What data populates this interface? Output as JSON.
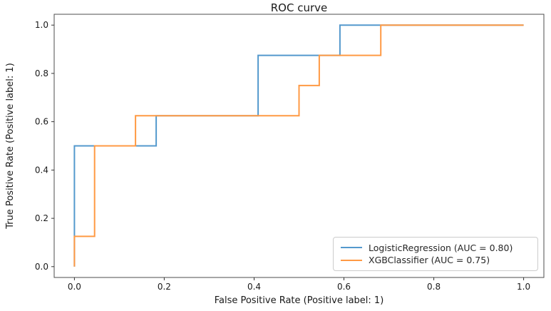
{
  "chart_data": {
    "type": "line",
    "subtype": "roc-step-curves",
    "title": "ROC curve",
    "xlabel": "False Positive Rate (Positive label: 1)",
    "ylabel": "True Positive Rate (Positive label: 1)",
    "xlim": [
      -0.045,
      1.045
    ],
    "ylim": [
      -0.045,
      1.045
    ],
    "xticks": [
      0.0,
      0.2,
      0.4,
      0.6,
      0.8,
      1.0
    ],
    "yticks": [
      0.0,
      0.2,
      0.4,
      0.6,
      0.8,
      1.0
    ],
    "xtick_labels": [
      "0.0",
      "0.2",
      "0.4",
      "0.6",
      "0.8",
      "1.0"
    ],
    "ytick_labels": [
      "0.0",
      "0.2",
      "0.4",
      "0.6",
      "0.8",
      "1.0"
    ],
    "grid": false,
    "legend_position": "lower right",
    "colors": {
      "axis": "#4d4d4d",
      "tick": "#333333",
      "text": "#1a1a1a",
      "legend_border": "#cccccc"
    },
    "series": [
      {
        "name": "LogisticRegression",
        "label": "LogisticRegression (AUC = 0.80)",
        "auc": 0.8,
        "color": "#5499cd",
        "drawstyle": "steps-post",
        "points": [
          [
            0.0,
            0.0
          ],
          [
            0.0,
            0.5
          ],
          [
            0.182,
            0.5
          ],
          [
            0.182,
            0.625
          ],
          [
            0.409,
            0.625
          ],
          [
            0.409,
            0.875
          ],
          [
            0.591,
            0.875
          ],
          [
            0.591,
            1.0
          ],
          [
            1.0,
            1.0
          ]
        ]
      },
      {
        "name": "XGBClassifier",
        "label": "XGBClassifier (AUC = 0.75)",
        "auc": 0.75,
        "color": "#ff9a44",
        "drawstyle": "steps-post",
        "points": [
          [
            0.0,
            0.0
          ],
          [
            0.0,
            0.125
          ],
          [
            0.045,
            0.125
          ],
          [
            0.045,
            0.5
          ],
          [
            0.136,
            0.5
          ],
          [
            0.136,
            0.625
          ],
          [
            0.5,
            0.625
          ],
          [
            0.5,
            0.75
          ],
          [
            0.545,
            0.75
          ],
          [
            0.545,
            0.875
          ],
          [
            0.682,
            0.875
          ],
          [
            0.682,
            1.0
          ],
          [
            1.0,
            1.0
          ]
        ]
      }
    ]
  }
}
